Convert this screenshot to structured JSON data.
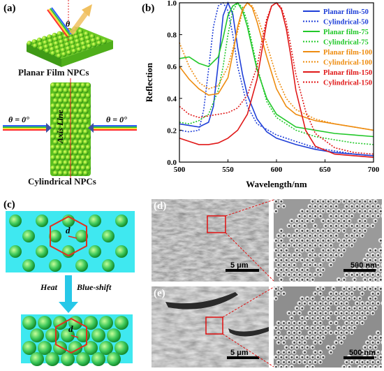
{
  "panels": {
    "a": {
      "label": "(a)",
      "theta_top": "θ",
      "planar_caption": "Planar Film NPCs",
      "theta_left": "θ = 0°",
      "theta_right": "θ = 0°",
      "axis_label": "Axis Line",
      "cyl_caption": "Cylindrical NPCs"
    },
    "b": {
      "label": "(b)"
    },
    "c": {
      "label": "(c)",
      "d_top": "d",
      "d_bottom": "d",
      "heat": "Heat",
      "blueshift": "Blue-shift"
    },
    "d": {
      "label": "(d)",
      "scale_left": "5 μm",
      "scale_right": "500 nm"
    },
    "e": {
      "label": "(e)",
      "scale_left": "5 μm",
      "scale_right": "500 nm"
    }
  },
  "chart_data": {
    "type": "line",
    "xlabel": "Wavelength/nm",
    "ylabel": "Reflection",
    "xlim": [
      500,
      700
    ],
    "ylim": [
      0.0,
      1.0
    ],
    "xticks": [
      500,
      550,
      600,
      650,
      700
    ],
    "yticks": [
      0.0,
      0.2,
      0.4,
      0.6,
      0.8,
      1.0
    ],
    "legend_position": "top-right",
    "series": [
      {
        "name": "Planar film-50",
        "color": "#1f3fd8",
        "style": "solid",
        "x": [
          500,
          510,
          520,
          530,
          535,
          540,
          545,
          550,
          555,
          560,
          565,
          570,
          580,
          590,
          600,
          620,
          640,
          660,
          680,
          700
        ],
        "y": [
          0.24,
          0.23,
          0.22,
          0.25,
          0.35,
          0.62,
          0.92,
          1.0,
          0.93,
          0.72,
          0.55,
          0.42,
          0.27,
          0.19,
          0.15,
          0.11,
          0.08,
          0.06,
          0.05,
          0.04
        ]
      },
      {
        "name": "Cylindrical-50",
        "color": "#1f3fd8",
        "style": "dotted",
        "x": [
          500,
          510,
          520,
          525,
          530,
          535,
          540,
          545,
          550,
          555,
          560,
          570,
          580,
          600,
          620,
          640,
          660,
          680,
          700
        ],
        "y": [
          0.2,
          0.19,
          0.2,
          0.33,
          0.58,
          0.85,
          0.98,
          1.0,
          0.95,
          0.8,
          0.6,
          0.35,
          0.24,
          0.17,
          0.13,
          0.09,
          0.07,
          0.05,
          0.04
        ]
      },
      {
        "name": "Planar film-75",
        "color": "#22c82a",
        "style": "solid",
        "x": [
          500,
          510,
          520,
          530,
          540,
          545,
          550,
          555,
          560,
          565,
          570,
          580,
          590,
          600,
          620,
          640,
          660,
          680,
          700
        ],
        "y": [
          0.65,
          0.66,
          0.62,
          0.6,
          0.66,
          0.78,
          0.92,
          0.98,
          1.0,
          0.95,
          0.85,
          0.58,
          0.4,
          0.3,
          0.22,
          0.2,
          0.18,
          0.17,
          0.16
        ]
      },
      {
        "name": "Cylindrical-75",
        "color": "#22c82a",
        "style": "dotted",
        "x": [
          500,
          510,
          520,
          530,
          540,
          545,
          550,
          555,
          560,
          565,
          570,
          580,
          590,
          600,
          620,
          640,
          660,
          680,
          700
        ],
        "y": [
          0.25,
          0.24,
          0.26,
          0.3,
          0.45,
          0.6,
          0.8,
          0.95,
          1.0,
          0.97,
          0.88,
          0.6,
          0.38,
          0.28,
          0.2,
          0.16,
          0.14,
          0.12,
          0.11
        ]
      },
      {
        "name": "Planar film-100",
        "color": "#ee8c10",
        "style": "solid",
        "x": [
          500,
          510,
          520,
          530,
          540,
          550,
          555,
          560,
          565,
          570,
          575,
          580,
          590,
          600,
          610,
          620,
          640,
          660,
          680,
          700
        ],
        "y": [
          0.6,
          0.52,
          0.46,
          0.42,
          0.43,
          0.53,
          0.68,
          0.85,
          0.96,
          1.0,
          0.97,
          0.88,
          0.66,
          0.46,
          0.35,
          0.3,
          0.26,
          0.24,
          0.22,
          0.2
        ]
      },
      {
        "name": "Cylindrical-100",
        "color": "#ee8c10",
        "style": "dotted",
        "x": [
          500,
          510,
          520,
          530,
          540,
          550,
          560,
          565,
          570,
          575,
          580,
          590,
          600,
          610,
          620,
          640,
          660,
          680,
          700
        ],
        "y": [
          0.75,
          0.6,
          0.5,
          0.46,
          0.48,
          0.6,
          0.82,
          0.95,
          1.0,
          0.98,
          0.92,
          0.74,
          0.54,
          0.4,
          0.33,
          0.27,
          0.24,
          0.22,
          0.2
        ]
      },
      {
        "name": "Planar film-150",
        "color": "#e01818",
        "style": "solid",
        "x": [
          500,
          510,
          520,
          530,
          540,
          550,
          560,
          570,
          580,
          585,
          590,
          595,
          600,
          605,
          610,
          615,
          620,
          630,
          640,
          660,
          680,
          700
        ],
        "y": [
          0.15,
          0.13,
          0.11,
          0.11,
          0.12,
          0.15,
          0.2,
          0.3,
          0.52,
          0.7,
          0.88,
          0.98,
          1.0,
          0.96,
          0.84,
          0.66,
          0.45,
          0.2,
          0.1,
          0.05,
          0.04,
          0.03
        ]
      },
      {
        "name": "Cylindrical-150",
        "color": "#e01818",
        "style": "dotted",
        "x": [
          500,
          510,
          520,
          530,
          540,
          550,
          560,
          570,
          580,
          585,
          590,
          595,
          600,
          605,
          610,
          615,
          620,
          630,
          640,
          660,
          680,
          700
        ],
        "y": [
          0.35,
          0.3,
          0.28,
          0.29,
          0.3,
          0.31,
          0.34,
          0.42,
          0.6,
          0.76,
          0.9,
          0.98,
          1.0,
          0.97,
          0.88,
          0.72,
          0.55,
          0.32,
          0.18,
          0.09,
          0.06,
          0.05
        ]
      }
    ]
  }
}
